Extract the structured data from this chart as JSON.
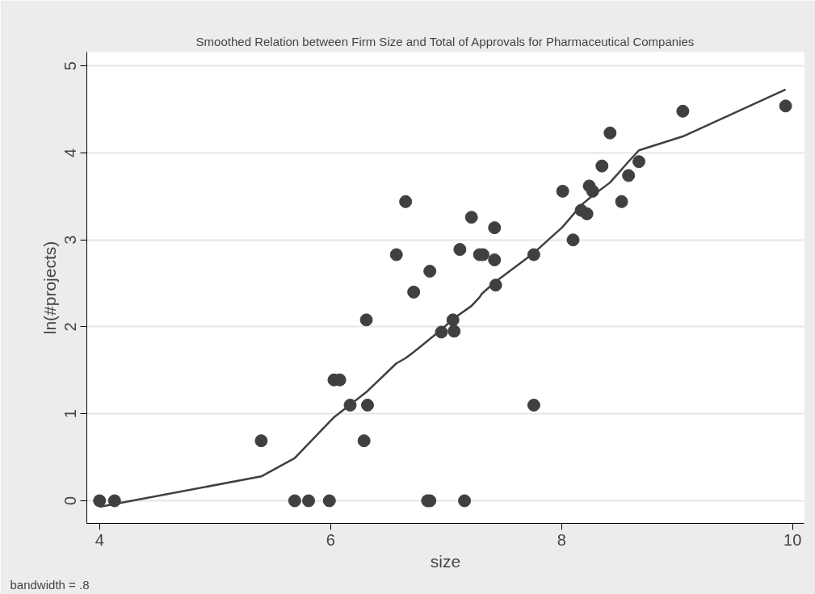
{
  "chart_data": {
    "type": "scatter",
    "title": "Smoothed Relation between Firm Size and Total of Approvals for Pharmaceutical Companies",
    "xlabel": "size",
    "ylabel": "ln(#projects)",
    "annotations": [
      "bandwidth = .8"
    ],
    "xlim": [
      3.89,
      10.1
    ],
    "ylim": [
      -0.26,
      5.16
    ],
    "xticks": [
      4,
      6,
      8,
      10
    ],
    "yticks": [
      0,
      1,
      2,
      3,
      4,
      5
    ],
    "grid": "y",
    "series": [
      {
        "marker": "circle",
        "color": "#404040",
        "x": [
          4.0,
          4.13,
          5.4,
          5.69,
          5.81,
          5.99,
          6.03,
          6.08,
          6.17,
          6.32,
          6.29,
          6.31,
          6.57,
          6.65,
          6.72,
          6.86,
          6.84,
          6.86,
          6.96,
          7.16,
          7.06,
          7.07,
          7.12,
          7.22,
          7.29,
          7.32,
          7.42,
          7.42,
          7.43,
          7.76,
          7.76,
          8.01,
          8.1,
          8.17,
          8.22,
          8.24,
          8.27,
          8.35,
          8.42,
          8.52,
          8.58,
          8.67,
          9.05,
          9.94
        ],
        "values": [
          0,
          0,
          0.69,
          0,
          0,
          0,
          1.39,
          1.39,
          1.1,
          1.1,
          0.69,
          2.08,
          2.83,
          3.44,
          2.4,
          2.64,
          0,
          0,
          1.94,
          0,
          2.08,
          1.95,
          2.89,
          3.26,
          2.83,
          2.83,
          3.14,
          2.77,
          2.48,
          2.83,
          1.1,
          3.56,
          3.0,
          3.34,
          3.3,
          3.62,
          3.56,
          3.85,
          4.23,
          3.44,
          3.74,
          3.9,
          4.48,
          4.54
        ]
      },
      {
        "type": "line",
        "marker": "none",
        "color": "#404040",
        "x": [
          4.0,
          5.4,
          5.69,
          6.0,
          6.03,
          6.31,
          6.57,
          6.65,
          6.72,
          6.86,
          6.97,
          7.06,
          7.22,
          7.29,
          7.31,
          7.42,
          7.76,
          8.01,
          8.17,
          8.27,
          8.42,
          8.58,
          8.67,
          9.05,
          9.94
        ],
        "values": [
          -0.07,
          0.28,
          0.49,
          0.92,
          0.96,
          1.25,
          1.58,
          1.64,
          1.71,
          1.86,
          1.98,
          2.09,
          2.24,
          2.34,
          2.38,
          2.51,
          2.85,
          3.15,
          3.4,
          3.51,
          3.66,
          3.9,
          4.03,
          4.19,
          4.73
        ]
      }
    ]
  }
}
